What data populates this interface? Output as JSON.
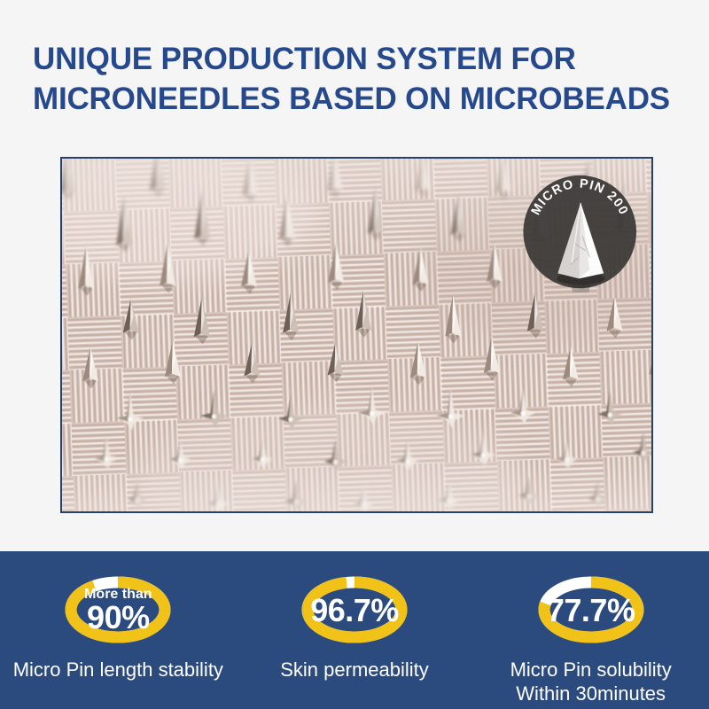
{
  "title": {
    "line1": "UNIQUE PRODUCTION SYSTEM FOR",
    "line2": "MICRONEEDLES BASED ON MICROBEADS"
  },
  "photo": {
    "badge_label": "MICRO PIN 200"
  },
  "stats": {
    "items": [
      {
        "prefix": "More than",
        "value": "90%",
        "percent": 90,
        "label": "Micro Pin length stability",
        "label2": ""
      },
      {
        "prefix": "",
        "value": "96.7%",
        "percent": 96.7,
        "label": "Skin permeability",
        "label2": ""
      },
      {
        "prefix": "",
        "value": "77.7%",
        "percent": 77.7,
        "label": "Micro Pin solubility",
        "label2": "Within 30minutes"
      }
    ]
  },
  "colors": {
    "title_blue": "#26498d",
    "panel_blue": "#2b4a7d",
    "ring_yellow": "#f1c218",
    "ring_gap": "#ffffff",
    "page_bg": "#f5f5f6",
    "photo_border": "#27416e",
    "badge_dark": "#3b3937"
  }
}
